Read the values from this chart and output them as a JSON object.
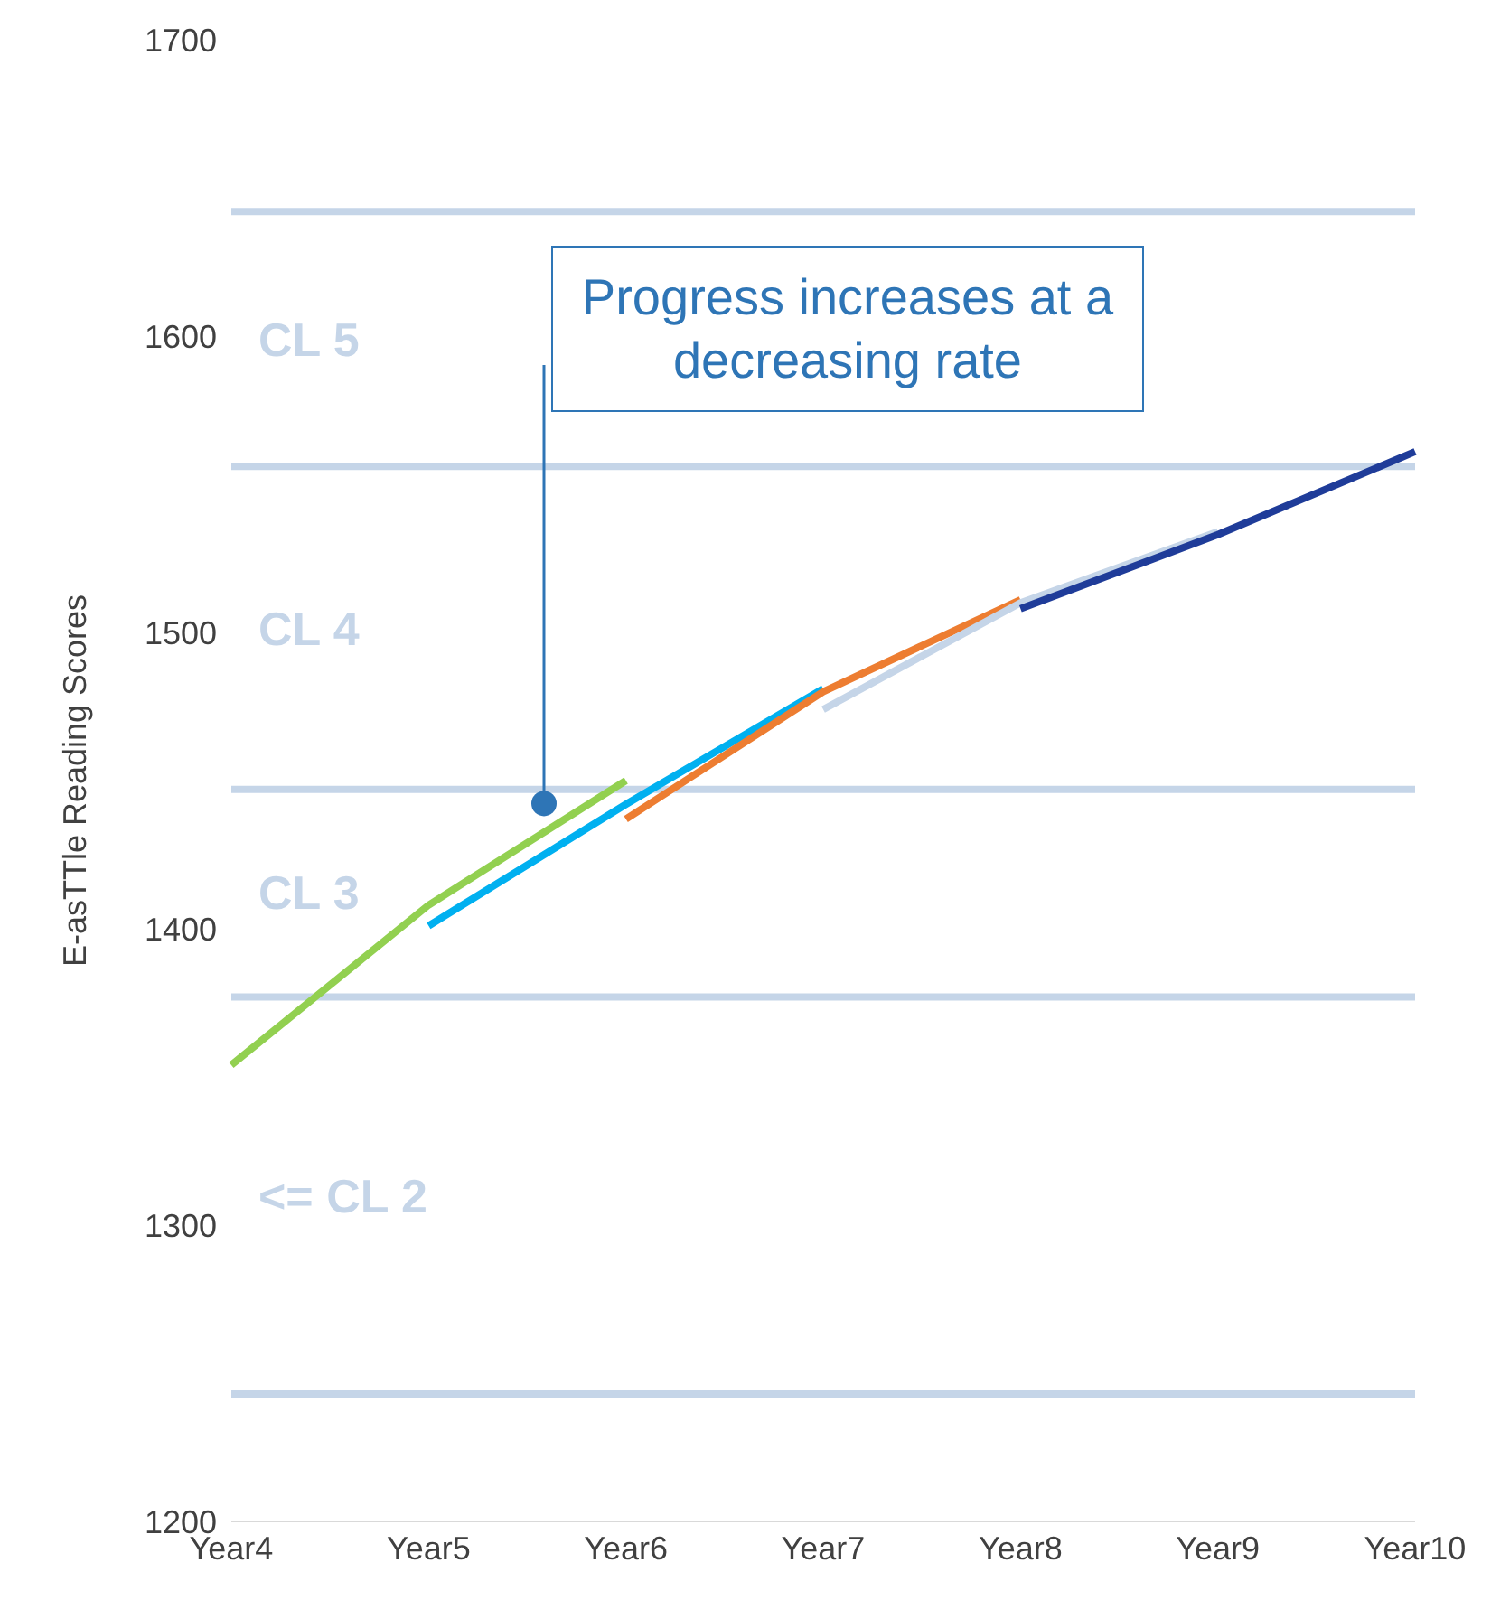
{
  "chart_data": {
    "type": "line",
    "ylabel": "E-asTTle Reading Scores",
    "categories": [
      "Year4",
      "Year5",
      "Year6",
      "Year7",
      "Year8",
      "Year9",
      "Year10"
    ],
    "series": [
      {
        "color": "#92d050",
        "values": [
          1354,
          1408,
          1450,
          null,
          null,
          null,
          null
        ]
      },
      {
        "color": "#00b0f0",
        "values": [
          null,
          1401,
          1442,
          1481,
          null,
          null,
          null
        ]
      },
      {
        "color": "#ed7d31",
        "values": [
          null,
          null,
          1437,
          1480,
          1511,
          null,
          null
        ]
      },
      {
        "color": "#c5d5e8",
        "values": [
          null,
          null,
          null,
          1474,
          1510,
          1534,
          null
        ]
      },
      {
        "color": "#1f3c99",
        "values": [
          null,
          null,
          null,
          null,
          1508,
          1533,
          1561
        ]
      }
    ],
    "ylim": [
      1200,
      1700
    ],
    "yticks": [
      1200,
      1300,
      1400,
      1500,
      1600,
      1700
    ],
    "marker": "none",
    "line_style": "solid",
    "ref_lines": [
      {
        "axis": "y",
        "value": 1243,
        "color": "#c5d5e8"
      },
      {
        "axis": "y",
        "value": 1377,
        "color": "#c5d5e8"
      },
      {
        "axis": "y",
        "value": 1447,
        "color": "#c5d5e8"
      },
      {
        "axis": "y",
        "value": 1556,
        "color": "#c5d5e8"
      },
      {
        "axis": "y",
        "value": 1642,
        "color": "#c5d5e8"
      }
    ],
    "annotations": [
      "Progress increases at a decreasing rate",
      "<= CL 2",
      "CL 3",
      "CL 4",
      "CL 5"
    ]
  }
}
